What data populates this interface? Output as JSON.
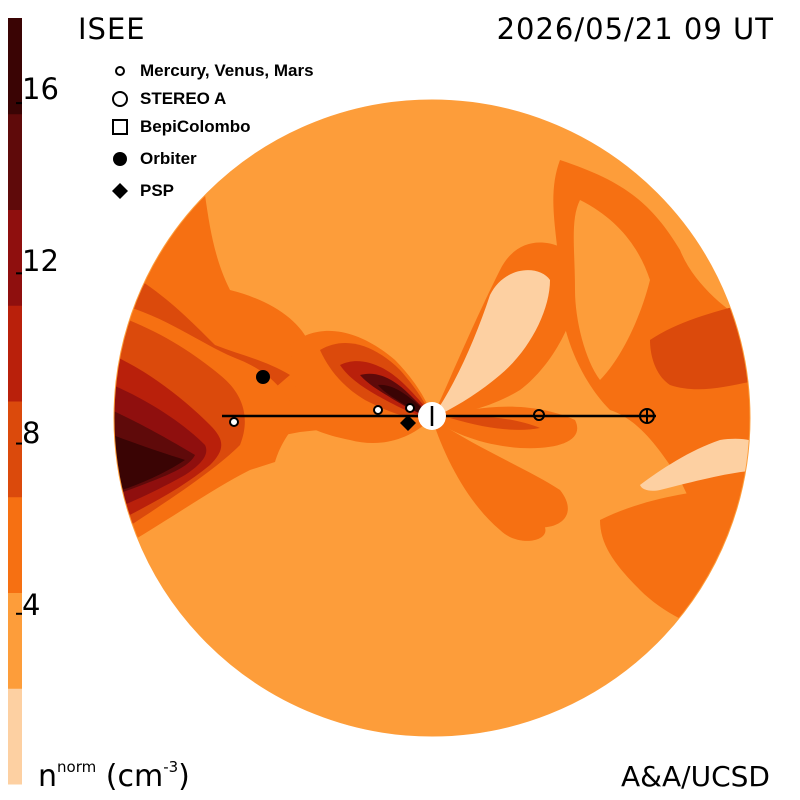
{
  "header": {
    "title": "ISEE",
    "timestamp": "2026/05/21 09 UT",
    "credit": "A&A/UCSD"
  },
  "colorbar": {
    "quantity": "n",
    "quantity_superscript": "norm",
    "unit_open": " (cm",
    "unit_superscript": "-3",
    "unit_close": ")",
    "ticks": [
      "16",
      "12",
      "8",
      "4"
    ],
    "range": [
      0,
      18
    ],
    "band_colors": [
      "#fdd0a2",
      "#fd9d3a",
      "#f67012",
      "#db4a0c",
      "#b9200b",
      "#8f0f0e",
      "#5f0a0a",
      "#3a0404"
    ]
  },
  "legend": {
    "items": [
      {
        "label": "Mercury, Venus, Mars",
        "symbol": "small-open-circle"
      },
      {
        "label": "STEREO A",
        "symbol": "open-circle"
      },
      {
        "label": "BepiColombo",
        "symbol": "open-square"
      },
      {
        "label": "Orbiter",
        "symbol": "filled-circle"
      },
      {
        "label": "PSP",
        "symbol": "filled-diamond"
      }
    ]
  },
  "map": {
    "background_color": "#fd9d3a",
    "sun_color": "#ffffff",
    "line_color": "#000000"
  }
}
